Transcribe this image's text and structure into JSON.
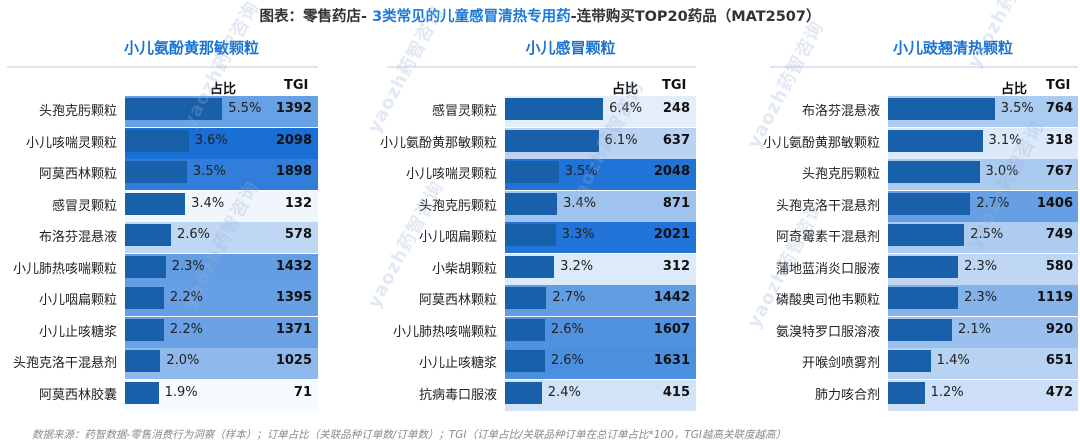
{
  "page_title": {
    "prefix": "图表：零售药店- ",
    "highlight": "3类常见的儿童感冒清热专用药",
    "suffix": "-连带购买TOP20药品（MAT2507）"
  },
  "headers": {
    "share": "占比",
    "tgi": "TGI"
  },
  "watermark": "yaozh药智咨询",
  "footnote": "数据来源：药智数据-零售消费行为洞察（样本）；订单占比（关联品种订单数/订单数）；TGI（订单占比/关联品种订单在总订单占比*100，TGI越高关联度越高）",
  "colors": {
    "bar": "#1860aa",
    "title_accent": "#1a73d0",
    "tgi_high": "#1a6fd6",
    "tgi_low": "#ffffff"
  },
  "chart_data": [
    {
      "type": "bar",
      "title": "小儿氨酚黄那敏颗粒",
      "categories": [
        "头孢克肟颗粒",
        "小儿咳喘灵颗粒",
        "阿莫西林颗粒",
        "感冒灵颗粒",
        "布洛芬混悬液",
        "小儿肺热咳喘颗粒",
        "小儿咽扁颗粒",
        "小儿止咳糖浆",
        "头孢克洛干混悬剂",
        "阿莫西林胶囊"
      ],
      "series": [
        {
          "values": [
            5.5,
            3.6,
            3.5,
            3.4,
            2.6,
            2.3,
            2.2,
            2.2,
            2.0,
            1.9
          ],
          "value_labels": [
            "5.5%",
            "3.6%",
            "3.5%",
            "3.4%",
            "2.6%",
            "2.3%",
            "2.2%",
            "2.2%",
            "2.0%",
            "1.9%"
          ]
        },
        {
          "values": [
            1392,
            2098,
            1898,
            132,
            578,
            1432,
            1395,
            1371,
            1025,
            71
          ]
        }
      ],
      "xlim": [
        0,
        6.5
      ]
    },
    {
      "type": "bar",
      "title": "小儿感冒颗粒",
      "categories": [
        "感冒灵颗粒",
        "小儿氨酚黄那敏颗粒",
        "小儿咳喘灵颗粒",
        "头孢克肟颗粒",
        "小儿咽扁颗粒",
        "小柴胡颗粒",
        "阿莫西林颗粒",
        "小儿肺热咳喘颗粒",
        "小儿止咳糖浆",
        "抗病毒口服液"
      ],
      "series": [
        {
          "values": [
            6.4,
            6.1,
            3.5,
            3.4,
            3.3,
            3.2,
            2.7,
            2.6,
            2.6,
            2.4
          ],
          "value_labels": [
            "6.4%",
            "6.1%",
            "3.5%",
            "3.4%",
            "3.3%",
            "3.2%",
            "2.7%",
            "2.6%",
            "2.6%",
            "2.4%"
          ]
        },
        {
          "values": [
            248,
            637,
            2048,
            871,
            2021,
            312,
            1442,
            1607,
            1631,
            415
          ]
        }
      ],
      "xlim": [
        0,
        7.5
      ]
    },
    {
      "type": "bar",
      "title": "小儿豉翘清热颗粒",
      "categories": [
        "布洛芬混悬液",
        "小儿氨酚黄那敏颗粒",
        "头孢克肟颗粒",
        "头孢克洛干混悬剂",
        "阿奇霉素干混悬剂",
        "蒲地蓝消炎口服液",
        "磷酸奥司他韦颗粒",
        "氨溴特罗口服溶液",
        "开喉剑喷雾剂",
        "肺力咳合剂"
      ],
      "series": [
        {
          "values": [
            3.5,
            3.1,
            3.0,
            2.7,
            2.5,
            2.3,
            2.3,
            2.1,
            1.4,
            1.2
          ],
          "value_labels": [
            "3.5%",
            "3.1%",
            "3.0%",
            "2.7%",
            "2.5%",
            "2.3%",
            "2.3%",
            "2.1%",
            "1.4%",
            "1.2%"
          ]
        },
        {
          "values": [
            764,
            318,
            767,
            1406,
            749,
            580,
            1119,
            920,
            651,
            472
          ]
        }
      ],
      "xlim": [
        0,
        4.1
      ]
    }
  ]
}
